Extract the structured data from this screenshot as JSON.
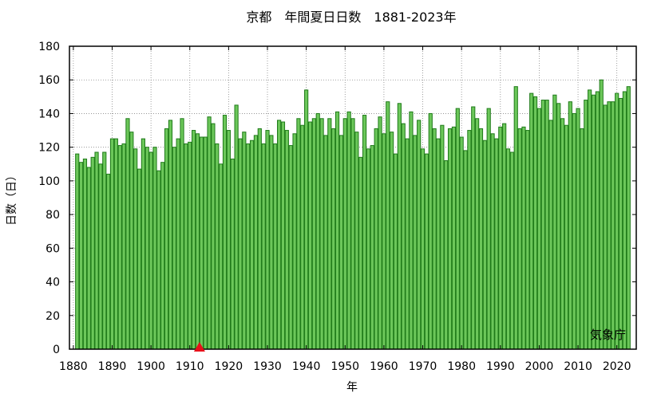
{
  "chart_data": {
    "type": "bar",
    "title": "京都　年間夏日日数　1881-2023年",
    "xlabel": "年",
    "ylabel": "日数（日）",
    "credit": "気象庁",
    "xlim": [
      1879,
      2025
    ],
    "ylim": [
      0,
      180
    ],
    "y_ticks": [
      0,
      20,
      40,
      60,
      80,
      100,
      120,
      140,
      160,
      180
    ],
    "x_ticks": [
      1880,
      1890,
      1900,
      1910,
      1920,
      1930,
      1940,
      1950,
      1960,
      1970,
      1980,
      1990,
      2000,
      2010,
      2020
    ],
    "grid": true,
    "marker": {
      "x": 1912.5,
      "y": 0,
      "shape": "triangle",
      "color": "#e8101a"
    },
    "bar_color": "#6cc75a",
    "bar_edge_color": "#1e7a18",
    "x": [
      1881,
      1882,
      1883,
      1884,
      1885,
      1886,
      1887,
      1888,
      1889,
      1890,
      1891,
      1892,
      1893,
      1894,
      1895,
      1896,
      1897,
      1898,
      1899,
      1900,
      1901,
      1902,
      1903,
      1904,
      1905,
      1906,
      1907,
      1908,
      1909,
      1910,
      1911,
      1912,
      1913,
      1914,
      1915,
      1916,
      1917,
      1918,
      1919,
      1920,
      1921,
      1922,
      1923,
      1924,
      1925,
      1926,
      1927,
      1928,
      1929,
      1930,
      1931,
      1932,
      1933,
      1934,
      1935,
      1936,
      1937,
      1938,
      1939,
      1940,
      1941,
      1942,
      1943,
      1944,
      1945,
      1946,
      1947,
      1948,
      1949,
      1950,
      1951,
      1952,
      1953,
      1954,
      1955,
      1956,
      1957,
      1958,
      1959,
      1960,
      1961,
      1962,
      1963,
      1964,
      1965,
      1966,
      1967,
      1968,
      1969,
      1970,
      1971,
      1972,
      1973,
      1974,
      1975,
      1976,
      1977,
      1978,
      1979,
      1980,
      1981,
      1982,
      1983,
      1984,
      1985,
      1986,
      1987,
      1988,
      1989,
      1990,
      1991,
      1992,
      1993,
      1994,
      1995,
      1996,
      1997,
      1998,
      1999,
      2000,
      2001,
      2002,
      2003,
      2004,
      2005,
      2006,
      2007,
      2008,
      2009,
      2010,
      2011,
      2012,
      2013,
      2014,
      2015,
      2016,
      2017,
      2018,
      2019,
      2020,
      2021,
      2022,
      2023
    ],
    "values": [
      116,
      111,
      113,
      108,
      114,
      117,
      110,
      117,
      104,
      125,
      125,
      121,
      122,
      137,
      129,
      119,
      107,
      125,
      120,
      117,
      120,
      106,
      111,
      131,
      136,
      120,
      125,
      137,
      122,
      123,
      130,
      128,
      126,
      126,
      138,
      134,
      122,
      110,
      139,
      130,
      113,
      145,
      125,
      129,
      122,
      124,
      127,
      131,
      122,
      130,
      127,
      122,
      136,
      135,
      130,
      121,
      128,
      137,
      133,
      154,
      135,
      137,
      140,
      137,
      127,
      137,
      131,
      141,
      127,
      137,
      141,
      137,
      129,
      114,
      139,
      119,
      121,
      131,
      138,
      128,
      147,
      129,
      116,
      146,
      134,
      125,
      141,
      127,
      136,
      119,
      116,
      140,
      131,
      125,
      133,
      112,
      131,
      132,
      143,
      126,
      118,
      130,
      144,
      137,
      131,
      124,
      143,
      128,
      125,
      132,
      134,
      119,
      117,
      156,
      131,
      132,
      130,
      152,
      150,
      143,
      148,
      148,
      136,
      151,
      146,
      137,
      133,
      147,
      140,
      143,
      131,
      148,
      154,
      151,
      153,
      160,
      145,
      147,
      147,
      152,
      149,
      153,
      156
    ]
  }
}
